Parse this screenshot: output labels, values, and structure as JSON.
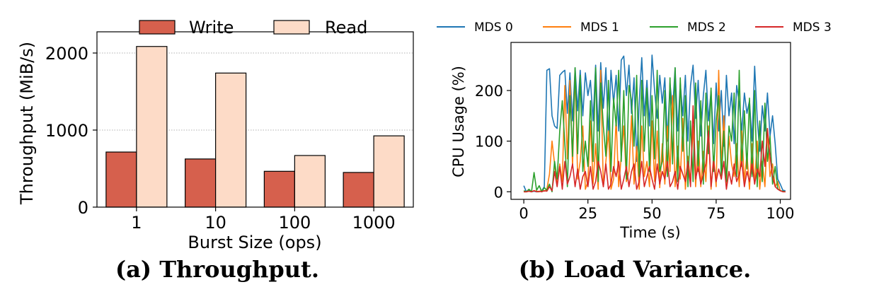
{
  "figure": {
    "captions": [
      "(a) Throughput.",
      "(b) Load Variance."
    ]
  },
  "chart_data": [
    {
      "type": "bar",
      "categories": [
        "1",
        "10",
        "100",
        "1000"
      ],
      "series": [
        {
          "name": "Write",
          "values": [
            715,
            625,
            465,
            450
          ],
          "color": "#d6604d"
        },
        {
          "name": "Read",
          "values": [
            2085,
            1740,
            670,
            925
          ],
          "color": "#fddbc7"
        }
      ],
      "xlabel": "Burst Size (ops)",
      "ylabel": "Throughput (MiB/s)",
      "ylim": [
        0,
        2000
      ],
      "yticks": [
        0,
        1000,
        2000
      ],
      "ytick_labels": [
        "0",
        "1000",
        "2000"
      ],
      "grid": "y dotted",
      "legend": "top, outside plot, horizontal"
    },
    {
      "type": "line",
      "xlabel": "Time (s)",
      "ylabel": "CPU Usage (%)",
      "xlim": [
        -5,
        104
      ],
      "ylim": [
        -15,
        295
      ],
      "xticks": [
        0,
        25,
        50,
        75,
        100
      ],
      "xtick_labels": [
        "0",
        "25",
        "50",
        "75",
        "100"
      ],
      "yticks": [
        0,
        100,
        200
      ],
      "ytick_labels": [
        "0",
        "100",
        "200"
      ],
      "grid": "none",
      "legend": "top, outside plot, horizontal",
      "x": [
        0,
        1,
        2,
        3,
        4,
        5,
        6,
        7,
        8,
        9,
        10,
        11,
        12,
        13,
        14,
        15,
        16,
        17,
        18,
        19,
        20,
        21,
        22,
        23,
        24,
        25,
        26,
        27,
        28,
        29,
        30,
        31,
        32,
        33,
        34,
        35,
        36,
        37,
        38,
        39,
        40,
        41,
        42,
        43,
        44,
        45,
        46,
        47,
        48,
        49,
        50,
        51,
        52,
        53,
        54,
        55,
        56,
        57,
        58,
        59,
        60,
        61,
        62,
        63,
        64,
        65,
        66,
        67,
        68,
        69,
        70,
        71,
        72,
        73,
        74,
        75,
        76,
        77,
        78,
        79,
        80,
        81,
        82,
        83,
        84,
        85,
        86,
        87,
        88,
        89,
        90,
        91,
        92,
        93,
        94,
        95,
        96,
        97,
        98,
        99,
        100,
        101,
        102
      ],
      "series": [
        {
          "name": "MDS 0",
          "color": "#1f77b4",
          "values": [
            12,
            0,
            2,
            0,
            1,
            0,
            0,
            2,
            10,
            240,
            243,
            150,
            130,
            125,
            230,
            236,
            240,
            155,
            235,
            140,
            245,
            160,
            240,
            150,
            235,
            190,
            220,
            140,
            250,
            120,
            255,
            165,
            245,
            110,
            240,
            175,
            230,
            120,
            260,
            268,
            190,
            250,
            155,
            225,
            60,
            175,
            265,
            150,
            220,
            130,
            270,
            200,
            145,
            230,
            175,
            225,
            100,
            215,
            160,
            245,
            120,
            215,
            150,
            230,
            100,
            210,
            250,
            145,
            220,
            110,
            190,
            240,
            140,
            200,
            95,
            215,
            120,
            200,
            90,
            230,
            150,
            195,
            95,
            210,
            175,
            120,
            195,
            155,
            180,
            100,
            248,
            145,
            80,
            170,
            120,
            195,
            110,
            150,
            95,
            25,
            15,
            3,
            2
          ]
        },
        {
          "name": "MDS 1",
          "color": "#ff7f0e",
          "values": [
            0,
            0,
            1,
            0,
            2,
            1,
            0,
            3,
            1,
            5,
            35,
            100,
            55,
            12,
            55,
            20,
            210,
            65,
            220,
            50,
            240,
            25,
            60,
            130,
            5,
            20,
            140,
            15,
            95,
            5,
            240,
            10,
            60,
            120,
            5,
            25,
            145,
            10,
            70,
            130,
            20,
            40,
            150,
            15,
            90,
            5,
            130,
            30,
            60,
            10,
            140,
            20,
            120,
            8,
            95,
            15,
            130,
            40,
            190,
            10,
            90,
            25,
            145,
            5,
            70,
            20,
            130,
            10,
            100,
            10,
            80,
            20,
            130,
            5,
            70,
            10,
            240,
            50,
            150,
            10,
            110,
            55,
            30,
            95,
            10,
            120,
            20,
            75,
            5,
            95,
            15,
            100,
            5,
            60,
            10,
            120,
            30,
            55,
            10,
            20,
            2,
            1,
            0
          ]
        },
        {
          "name": "MDS 2",
          "color": "#2ca02c",
          "values": [
            2,
            0,
            5,
            0,
            38,
            3,
            12,
            0,
            8,
            3,
            15,
            0,
            60,
            25,
            120,
            180,
            95,
            10,
            190,
            70,
            245,
            75,
            230,
            40,
            100,
            50,
            180,
            60,
            245,
            20,
            215,
            130,
            70,
            220,
            40,
            185,
            130,
            240,
            60,
            200,
            25,
            210,
            180,
            90,
            230,
            30,
            220,
            80,
            205,
            40,
            190,
            65,
            240,
            40,
            60,
            200,
            30,
            225,
            55,
            245,
            20,
            225,
            80,
            190,
            10,
            140,
            20,
            215,
            40,
            180,
            15,
            195,
            75,
            205,
            40,
            140,
            190,
            25,
            120,
            20,
            130,
            100,
            195,
            30,
            240,
            50,
            160,
            45,
            185,
            30,
            200,
            10,
            140,
            20,
            175,
            60,
            110,
            15,
            50,
            6,
            2,
            1,
            0
          ]
        },
        {
          "name": "MDS 3",
          "color": "#d62728",
          "values": [
            0,
            0,
            1,
            0,
            2,
            0,
            1,
            0,
            2,
            1,
            10,
            2,
            40,
            10,
            50,
            5,
            60,
            15,
            30,
            55,
            10,
            45,
            5,
            30,
            40,
            10,
            50,
            5,
            20,
            60,
            40,
            10,
            55,
            5,
            15,
            50,
            30,
            60,
            5,
            25,
            50,
            10,
            40,
            55,
            5,
            20,
            60,
            10,
            30,
            50,
            25,
            5,
            55,
            15,
            40,
            25,
            60,
            10,
            20,
            40,
            5,
            50,
            35,
            20,
            60,
            10,
            170,
            25,
            50,
            15,
            35,
            55,
            120,
            10,
            60,
            20,
            45,
            25,
            60,
            5,
            40,
            15,
            55,
            20,
            35,
            60,
            10,
            40,
            20,
            55,
            15,
            45,
            30,
            100,
            50,
            125,
            70,
            30,
            10,
            5,
            2,
            0,
            0
          ]
        }
      ]
    }
  ]
}
